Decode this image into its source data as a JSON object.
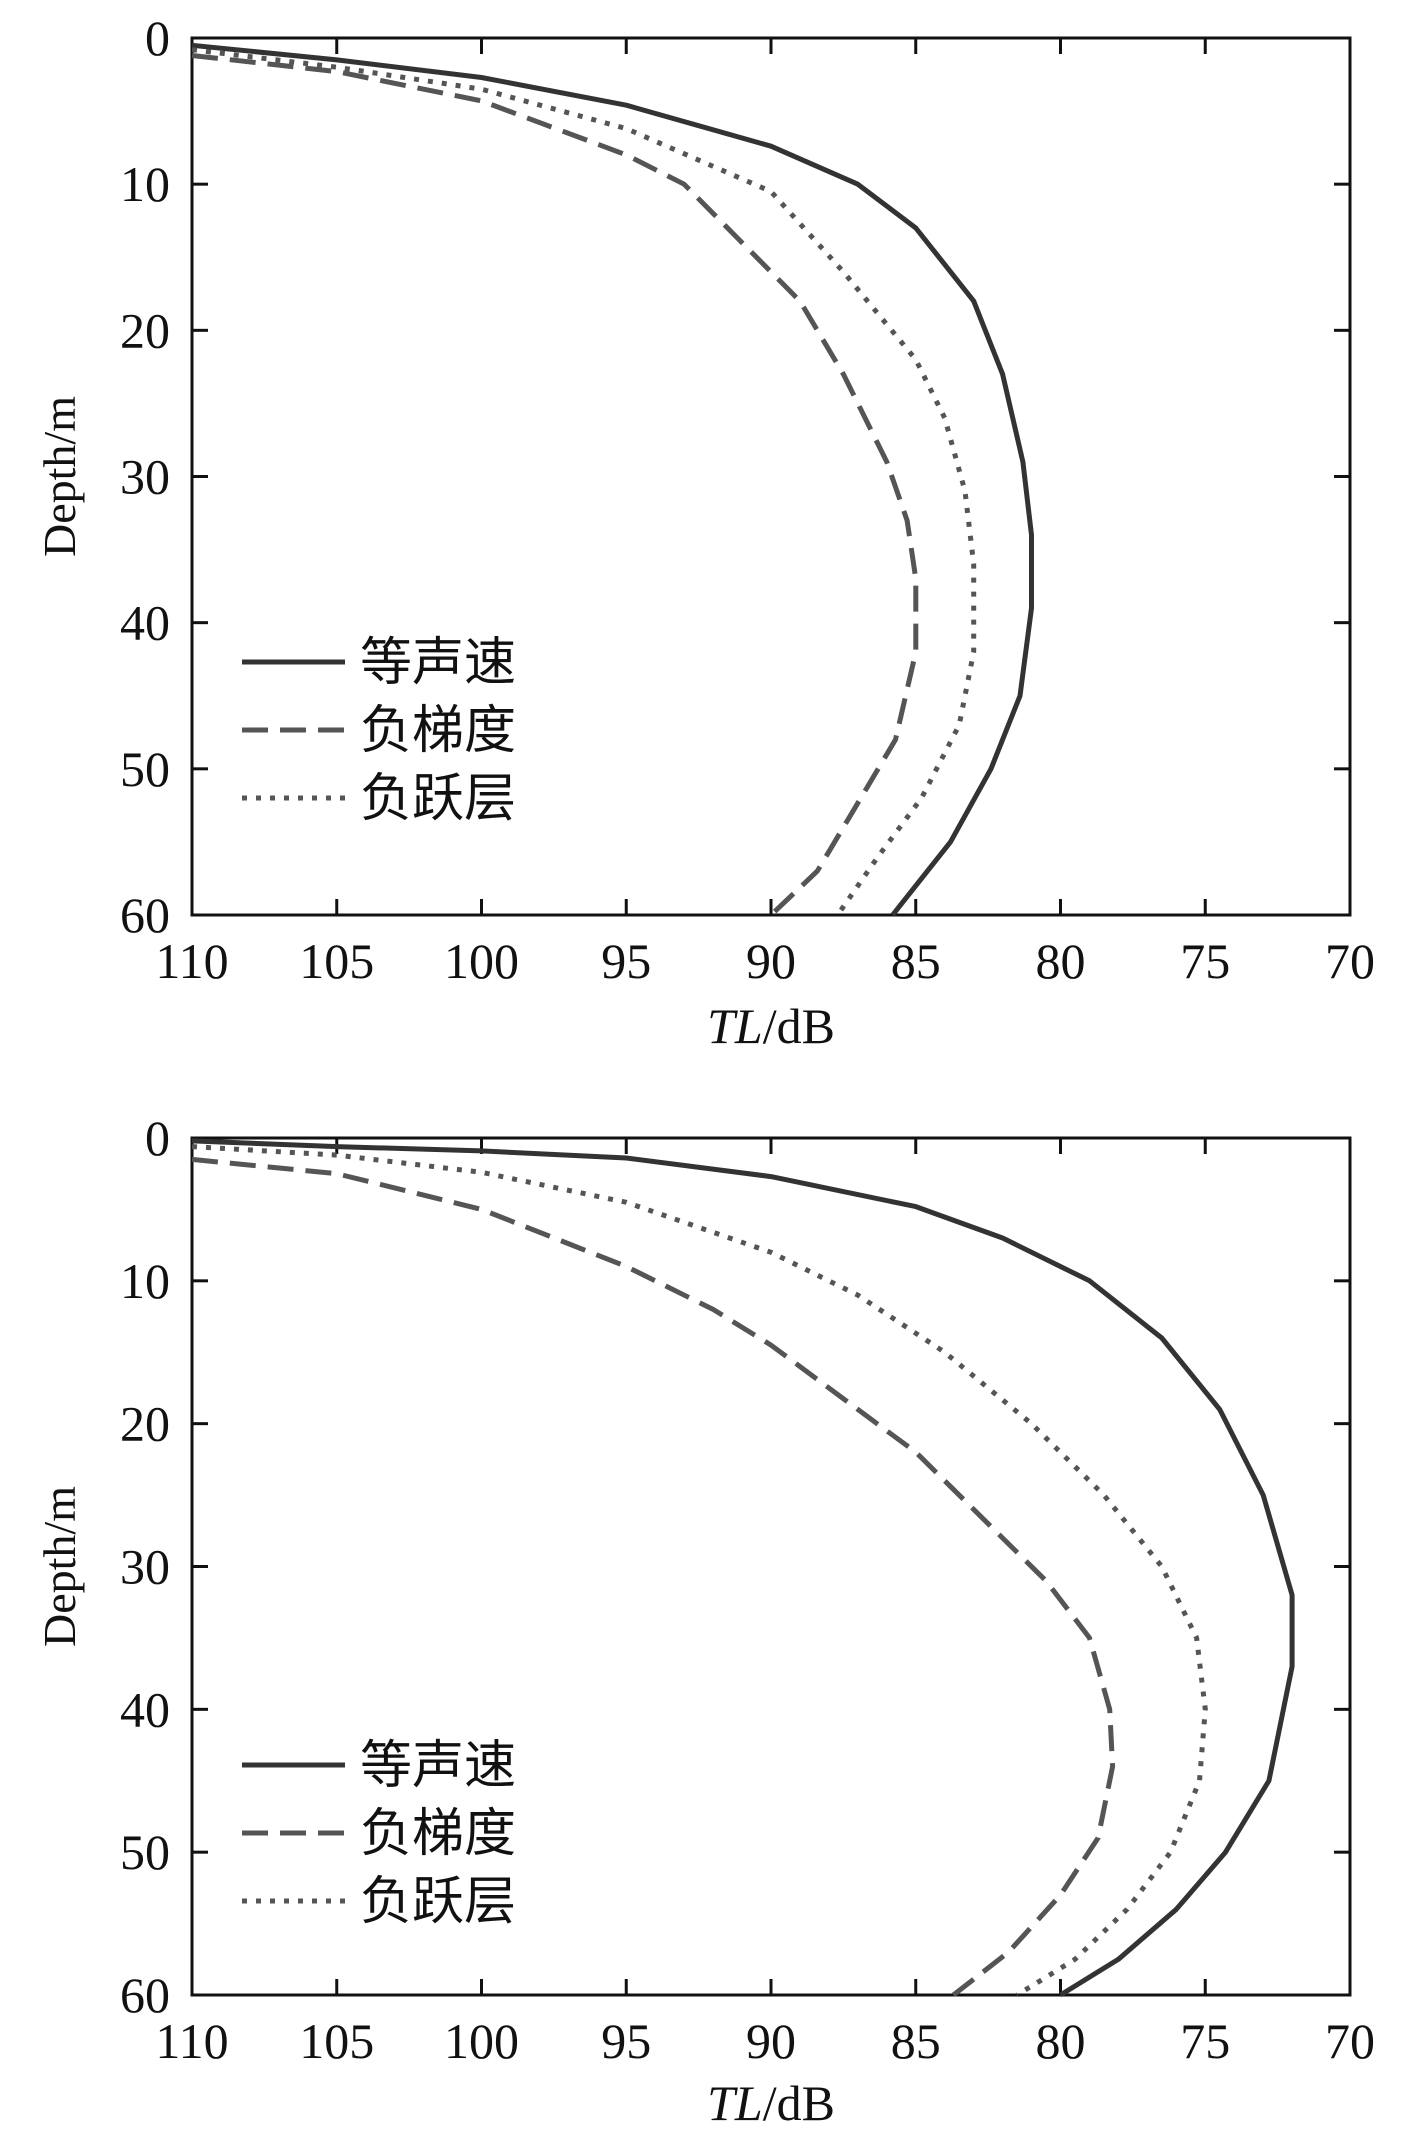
{
  "chart_data": [
    {
      "type": "line",
      "xlabel": "TL/dB",
      "xlabel_italic_part": "TL",
      "xlabel_unit_part": "/dB",
      "ylabel": "Depth/m",
      "xlim": [
        110,
        70
      ],
      "ylim": [
        0,
        60
      ],
      "xticks": [
        "110",
        "105",
        "100",
        "95",
        "90",
        "85",
        "80",
        "75",
        "70"
      ],
      "yticks": [
        "0",
        "10",
        "20",
        "30",
        "40",
        "50",
        "60"
      ],
      "legend_position": "lower-left",
      "series": [
        {
          "name": "等声速",
          "style": "solid",
          "color": "#333333",
          "points": [
            [
              110,
              0.5
            ],
            [
              105,
              1.5
            ],
            [
              100,
              2.7
            ],
            [
              95,
              4.6
            ],
            [
              90,
              7.4
            ],
            [
              87,
              10
            ],
            [
              85,
              13
            ],
            [
              83,
              18
            ],
            [
              82,
              23
            ],
            [
              81.3,
              29
            ],
            [
              81,
              34
            ],
            [
              81,
              39
            ],
            [
              81.4,
              45
            ],
            [
              82.4,
              50
            ],
            [
              83.8,
              55
            ],
            [
              85.8,
              60
            ]
          ]
        },
        {
          "name": "负梯度",
          "style": "dashed",
          "color": "#555555",
          "points": [
            [
              110,
              1.2
            ],
            [
              105,
              2.3
            ],
            [
              100,
              4.3
            ],
            [
              95,
              8
            ],
            [
              93,
              10
            ],
            [
              91,
              14
            ],
            [
              89,
              18
            ],
            [
              87.5,
              23
            ],
            [
              86,
              29
            ],
            [
              85.3,
              33
            ],
            [
              85,
              37
            ],
            [
              85,
              42
            ],
            [
              85.7,
              48
            ],
            [
              87.2,
              53
            ],
            [
              88.4,
              57
            ],
            [
              90,
              60
            ]
          ]
        },
        {
          "name": "负跃层",
          "style": "dotted",
          "color": "#555555",
          "points": [
            [
              110,
              0.8
            ],
            [
              105,
              2
            ],
            [
              100,
              3.5
            ],
            [
              95,
              6.2
            ],
            [
              90,
              10.5
            ],
            [
              87.5,
              16
            ],
            [
              85,
              22
            ],
            [
              84,
              26
            ],
            [
              83.3,
              31
            ],
            [
              83,
              36
            ],
            [
              83,
              42
            ],
            [
              83.5,
              47
            ],
            [
              84.8,
              52
            ],
            [
              86.3,
              56
            ],
            [
              87.7,
              60
            ]
          ]
        }
      ]
    },
    {
      "type": "line",
      "xlabel": "TL/dB",
      "xlabel_italic_part": "TL",
      "xlabel_unit_part": "/dB",
      "ylabel": "Depth/m",
      "xlim": [
        110,
        70
      ],
      "ylim": [
        0,
        60
      ],
      "xticks": [
        "110",
        "105",
        "100",
        "95",
        "90",
        "85",
        "80",
        "75",
        "70"
      ],
      "yticks": [
        "0",
        "10",
        "20",
        "30",
        "40",
        "50",
        "60"
      ],
      "legend_position": "lower-left",
      "series": [
        {
          "name": "等声速",
          "style": "solid",
          "color": "#333333",
          "points": [
            [
              110,
              0.2
            ],
            [
              105,
              0.6
            ],
            [
              100,
              0.9
            ],
            [
              95,
              1.4
            ],
            [
              90,
              2.7
            ],
            [
              85,
              4.8
            ],
            [
              82,
              7
            ],
            [
              79,
              10
            ],
            [
              76.5,
              14
            ],
            [
              74.5,
              19
            ],
            [
              73,
              25
            ],
            [
              72,
              32
            ],
            [
              72,
              37
            ],
            [
              72.8,
              45
            ],
            [
              74.3,
              50
            ],
            [
              76,
              54
            ],
            [
              78,
              57.5
            ],
            [
              80,
              60
            ]
          ]
        },
        {
          "name": "负梯度",
          "style": "dashed",
          "color": "#555555",
          "points": [
            [
              110,
              1.5
            ],
            [
              105,
              2.5
            ],
            [
              100,
              5
            ],
            [
              95,
              9
            ],
            [
              92,
              12
            ],
            [
              90,
              14.5
            ],
            [
              87,
              19
            ],
            [
              85,
              22
            ],
            [
              82.5,
              27
            ],
            [
              80.5,
              31
            ],
            [
              79,
              35
            ],
            [
              78.3,
              40
            ],
            [
              78.2,
              44
            ],
            [
              78.7,
              49
            ],
            [
              80,
              53
            ],
            [
              81.8,
              57
            ],
            [
              83.7,
              60
            ]
          ]
        },
        {
          "name": "负跃层",
          "style": "dotted",
          "color": "#555555",
          "points": [
            [
              110,
              0.6
            ],
            [
              105,
              1.2
            ],
            [
              100,
              2.4
            ],
            [
              95,
              4.5
            ],
            [
              90,
              8
            ],
            [
              87,
              11
            ],
            [
              84,
              15
            ],
            [
              81,
              20
            ],
            [
              78.5,
              25
            ],
            [
              76.5,
              30
            ],
            [
              75.3,
              35
            ],
            [
              75,
              40
            ],
            [
              75.2,
              45
            ],
            [
              76.2,
              50
            ],
            [
              77.7,
              54
            ],
            [
              79.5,
              57.5
            ],
            [
              81.5,
              60
            ]
          ]
        }
      ]
    }
  ]
}
